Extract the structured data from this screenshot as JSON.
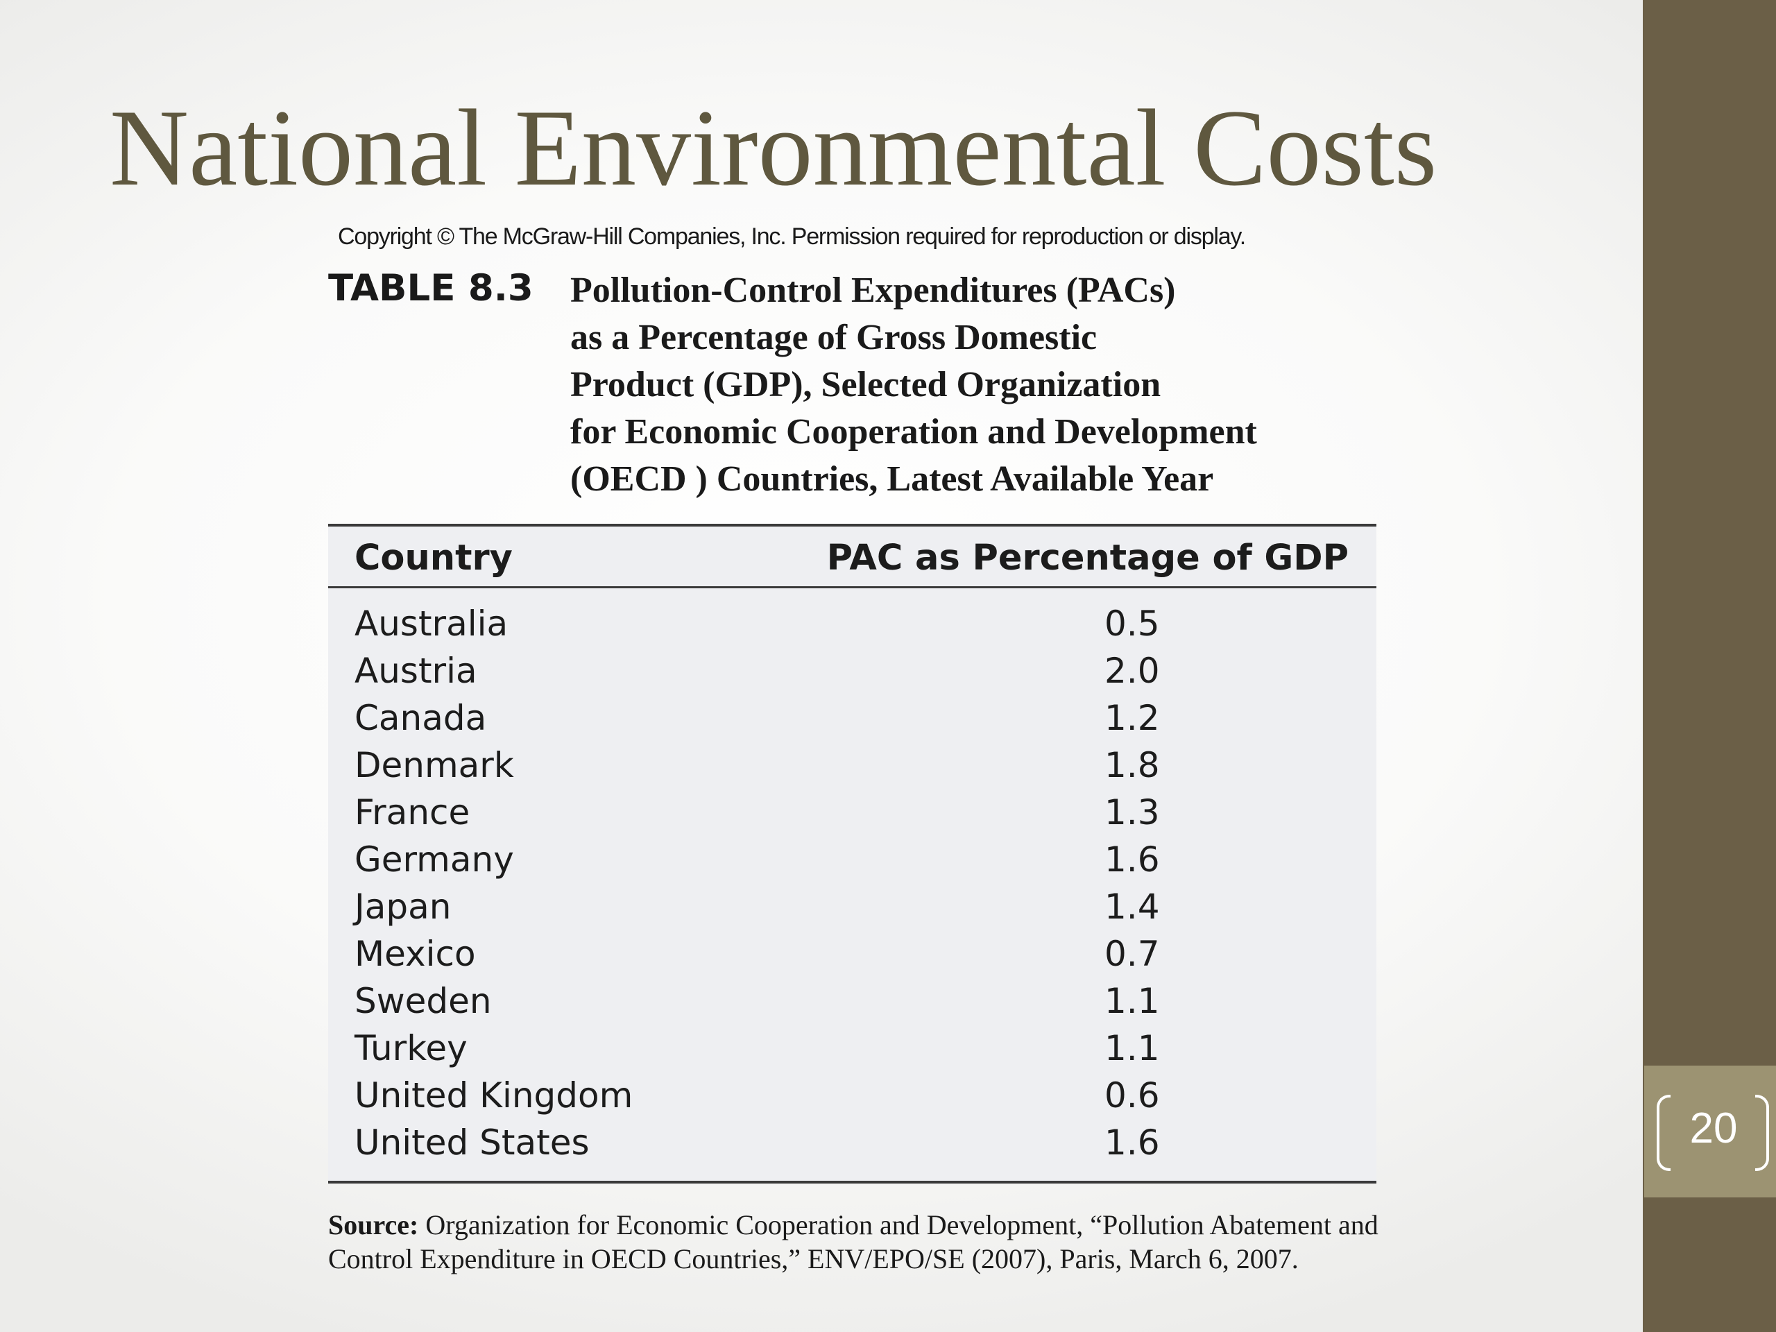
{
  "slide": {
    "title": "National Environmental Costs",
    "copyright": "Copyright © The McGraw-Hill Companies, Inc. Permission required for reproduction or display.",
    "page_number": "20"
  },
  "table": {
    "label": "TABLE 8.3",
    "caption_lines": [
      "Pollution-Control Expenditures (PACs)",
      "as a Percentage of Gross Domestic",
      "Product (GDP), Selected Organization",
      "for Economic Cooperation and Development",
      "(OECD ) Countries, Latest Available Year"
    ],
    "headers": {
      "country": "Country",
      "value": "PAC as Percentage of GDP"
    },
    "rows": [
      {
        "country": "Australia",
        "value": "0.5"
      },
      {
        "country": "Austria",
        "value": "2.0"
      },
      {
        "country": "Canada",
        "value": "1.2"
      },
      {
        "country": "Denmark",
        "value": "1.8"
      },
      {
        "country": "France",
        "value": "1.3"
      },
      {
        "country": "Germany",
        "value": "1.6"
      },
      {
        "country": "Japan",
        "value": "1.4"
      },
      {
        "country": "Mexico",
        "value": "0.7"
      },
      {
        "country": "Sweden",
        "value": "1.1"
      },
      {
        "country": "Turkey",
        "value": "1.1"
      },
      {
        "country": "United Kingdom",
        "value": "0.6"
      },
      {
        "country": "United States",
        "value": "1.6"
      }
    ],
    "source_label": "Source:",
    "source_text": "Organization for Economic Cooperation and Development, “Pollution Abatement and Control Expenditure in OECD Countries,” ENV/EPO/SE (2007), Paris, March 6, 2007."
  },
  "colors": {
    "title": "#5f583f",
    "sidebar": "#6b5f47",
    "page_box": "#9c9372",
    "table_background": "#eeeff2"
  }
}
